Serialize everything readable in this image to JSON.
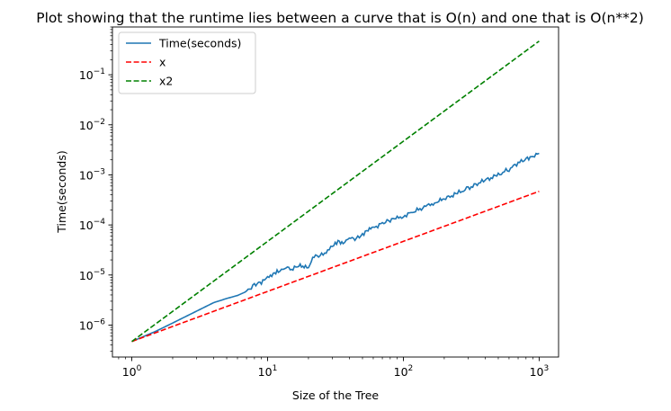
{
  "chart_data": {
    "type": "line",
    "title": "Plot showing that the runtime lies between a curve that is O(n) and one that is O(n**2)",
    "xlabel": "Size of the Tree",
    "ylabel": "Time(seconds)",
    "xscale": "log",
    "yscale": "log",
    "xlim": [
      0.72,
      1390
    ],
    "ylim": [
      2.3e-07,
      0.9
    ],
    "grid": false,
    "legend_position": "top-left",
    "x_ticks": [
      {
        "value": 1,
        "base": "10",
        "exp": "0"
      },
      {
        "value": 10,
        "base": "10",
        "exp": "1"
      },
      {
        "value": 100,
        "base": "10",
        "exp": "2"
      },
      {
        "value": 1000,
        "base": "10",
        "exp": "3"
      }
    ],
    "y_ticks": [
      {
        "value": 1e-06,
        "base": "10",
        "exp": "−6"
      },
      {
        "value": 1e-05,
        "base": "10",
        "exp": "−5"
      },
      {
        "value": 0.0001,
        "base": "10",
        "exp": "−4"
      },
      {
        "value": 0.001,
        "base": "10",
        "exp": "−3"
      },
      {
        "value": 0.01,
        "base": "10",
        "exp": "−2"
      },
      {
        "value": 0.1,
        "base": "10",
        "exp": "−1"
      }
    ],
    "series": [
      {
        "name": "Time(seconds)",
        "color": "#1f77b4",
        "style": "solid",
        "points": [
          [
            1,
            4.7e-07
          ],
          [
            1.5,
            7.5e-07
          ],
          [
            2,
            1.1e-06
          ],
          [
            3,
            1.9e-06
          ],
          [
            4,
            2.8e-06
          ],
          [
            5,
            3.4e-06
          ],
          [
            6,
            3.9e-06
          ],
          [
            7,
            4.7e-06
          ],
          [
            8,
            6.5e-06
          ],
          [
            9,
            7.2e-06
          ],
          [
            10,
            8.5e-06
          ],
          [
            11,
            1.1e-05
          ],
          [
            12,
            1.2e-05
          ],
          [
            13,
            1.2e-05
          ],
          [
            14,
            1.5e-05
          ],
          [
            15,
            1.3e-05
          ],
          [
            17,
            1.5e-05
          ],
          [
            19,
            1.5e-05
          ],
          [
            20,
            1.45e-05
          ],
          [
            22,
            2.3e-05
          ],
          [
            25,
            2.5e-05
          ],
          [
            27,
            3e-05
          ],
          [
            30,
            3.6e-05
          ],
          [
            33,
            4.7e-05
          ],
          [
            36,
            4.5e-05
          ],
          [
            40,
            5.3e-05
          ],
          [
            45,
            5.4e-05
          ],
          [
            50,
            6.6e-05
          ],
          [
            55,
            8e-05
          ],
          [
            60,
            8.6e-05
          ],
          [
            70,
            0.00011
          ],
          [
            80,
            0.000125
          ],
          [
            90,
            0.000135
          ],
          [
            100,
            0.00015
          ],
          [
            120,
            0.000185
          ],
          [
            150,
            0.00024
          ],
          [
            170,
            0.00028
          ],
          [
            200,
            0.00033
          ],
          [
            250,
            0.00043
          ],
          [
            300,
            0.00054
          ],
          [
            350,
            0.00066
          ],
          [
            400,
            0.00078
          ],
          [
            500,
            0.001
          ],
          [
            600,
            0.0013
          ],
          [
            700,
            0.0017
          ],
          [
            800,
            0.0021
          ],
          [
            900,
            0.0024
          ],
          [
            1000,
            0.0027
          ]
        ]
      },
      {
        "name": "x",
        "color": "#ff0000",
        "style": "dashed",
        "points": [
          [
            1,
            4.7e-07
          ],
          [
            1000,
            0.00047
          ]
        ]
      },
      {
        "name": "x2",
        "color": "#008000",
        "style": "dashed",
        "points": [
          [
            1,
            4.7e-07
          ],
          [
            1000,
            0.47
          ]
        ]
      }
    ]
  }
}
